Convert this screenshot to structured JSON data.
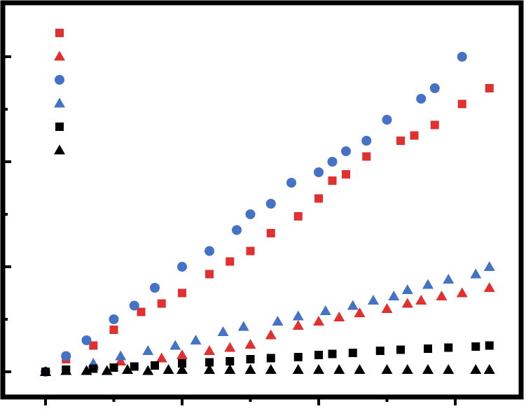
{
  "chart_data": {
    "type": "scatter",
    "title": "",
    "xlabel": "",
    "ylabel": "",
    "xlim": [
      0,
      3.3
    ],
    "ylim": [
      -0.1,
      3.4
    ],
    "x_ticks_major": [
      0,
      1,
      2,
      3
    ],
    "x_ticks_minor": [
      0.5,
      1.5,
      2.5
    ],
    "y_ticks_major": [
      0,
      1,
      2,
      3
    ],
    "y_ticks_minor": [
      0.5,
      1.5,
      2.5
    ],
    "grid": false,
    "legend": "top-left",
    "series": [
      {
        "marker": "square",
        "color": "#e03030",
        "x": [
          0,
          0.15,
          0.35,
          0.5,
          0.7,
          0.85,
          1.0,
          1.2,
          1.35,
          1.5,
          1.65,
          1.85,
          2.0,
          2.1,
          2.2,
          2.35,
          2.6,
          2.7,
          2.85,
          3.05,
          3.25
        ],
        "y": [
          0,
          0.12,
          0.25,
          0.4,
          0.57,
          0.65,
          0.75,
          0.93,
          1.05,
          1.15,
          1.32,
          1.48,
          1.65,
          1.82,
          1.88,
          2.05,
          2.2,
          2.25,
          2.35,
          2.55,
          2.7
        ]
      },
      {
        "marker": "triangle",
        "color": "#e03030",
        "x": [
          0,
          0.35,
          0.55,
          0.85,
          1.0,
          1.2,
          1.35,
          1.5,
          1.65,
          1.85,
          2.0,
          2.15,
          2.3,
          2.5,
          2.65,
          2.75,
          2.9,
          3.05,
          3.25
        ],
        "y": [
          0,
          0.06,
          0.1,
          0.13,
          0.16,
          0.2,
          0.23,
          0.26,
          0.35,
          0.44,
          0.48,
          0.52,
          0.56,
          0.6,
          0.65,
          0.68,
          0.72,
          0.75,
          0.8
        ]
      },
      {
        "marker": "circle",
        "color": "#4472c4",
        "x": [
          0,
          0.15,
          0.3,
          0.5,
          0.65,
          0.8,
          1.0,
          1.2,
          1.4,
          1.5,
          1.65,
          1.8,
          2.0,
          2.1,
          2.2,
          2.35,
          2.5,
          2.75,
          2.85,
          3.05
        ],
        "y": [
          0,
          0.15,
          0.3,
          0.5,
          0.63,
          0.8,
          1.0,
          1.15,
          1.35,
          1.5,
          1.6,
          1.8,
          1.9,
          2.0,
          2.1,
          2.2,
          2.4,
          2.6,
          2.7,
          3.0
        ]
      },
      {
        "marker": "triangle",
        "color": "#4472c4",
        "x": [
          0,
          0.35,
          0.55,
          0.75,
          0.95,
          1.1,
          1.3,
          1.45,
          1.7,
          1.85,
          2.05,
          2.25,
          2.4,
          2.55,
          2.65,
          2.8,
          2.95,
          3.15,
          3.25
        ],
        "y": [
          0,
          0.08,
          0.15,
          0.2,
          0.25,
          0.3,
          0.38,
          0.43,
          0.48,
          0.53,
          0.58,
          0.63,
          0.68,
          0.72,
          0.78,
          0.83,
          0.88,
          0.93,
          1.0
        ]
      },
      {
        "marker": "square",
        "color": "#000000",
        "x": [
          0,
          0.15,
          0.35,
          0.5,
          0.65,
          0.8,
          1.0,
          1.2,
          1.35,
          1.5,
          1.65,
          1.85,
          2.0,
          2.1,
          2.25,
          2.45,
          2.6,
          2.8,
          2.95,
          3.15,
          3.25
        ],
        "y": [
          0,
          0.02,
          0.03,
          0.04,
          0.05,
          0.06,
          0.08,
          0.09,
          0.1,
          0.12,
          0.13,
          0.14,
          0.16,
          0.17,
          0.18,
          0.2,
          0.21,
          0.22,
          0.23,
          0.24,
          0.25
        ]
      },
      {
        "marker": "triangle",
        "color": "#000000",
        "x": [
          0,
          0.15,
          0.3,
          0.45,
          0.6,
          0.75,
          0.9,
          1.0,
          1.2,
          1.35,
          1.5,
          1.65,
          1.85,
          2.0,
          2.15,
          2.3,
          2.5,
          2.65,
          2.8,
          2.95,
          3.15,
          3.25
        ],
        "y": [
          0,
          0.01,
          0.01,
          0.01,
          0.02,
          0.01,
          0.02,
          0.02,
          0.02,
          0.02,
          0.02,
          0.02,
          0.02,
          0.02,
          0.02,
          0.02,
          0.02,
          0.02,
          0.02,
          0.02,
          0.02,
          0.02
        ]
      }
    ]
  }
}
